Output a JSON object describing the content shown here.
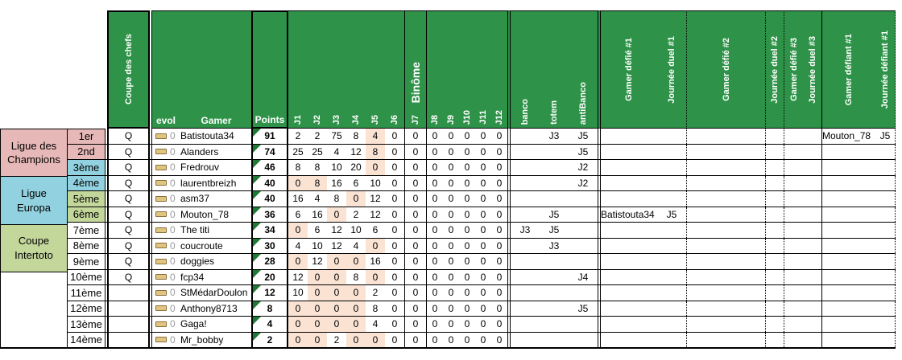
{
  "colors": {
    "header_green": "#2E9348",
    "champions_pink": "#E6B8B7",
    "europa_blue": "#92D1E0",
    "intertoto_green": "#C4D79B",
    "highlight_peach": "#FBE3D4",
    "evol_icon_fill": "#DFC57F",
    "evol_icon_border": "#8A6D3B",
    "points_triangle": "#1E7B33",
    "muted_zero": "#9A9A9A"
  },
  "header": {
    "coupe": "Coupe des chefs",
    "evol": "evol",
    "gamer": "Gamer",
    "points": "Points",
    "binome": "Binôme",
    "j_labels": [
      "J1",
      "J2",
      "J3",
      "J4",
      "J5",
      "J6",
      "J7",
      "J8",
      "J9",
      "J10",
      "J11",
      "J12"
    ],
    "banco": "banco",
    "totem": "totem",
    "antibanco": "antiBanco",
    "defie1": "Gamer défié #1",
    "duel1": "Journée duel #1",
    "defie2": "Gamer défié #2",
    "duel2": "Journée duel #2",
    "defie3": "Gamer défié #3",
    "duel3": "Journée duel #3",
    "defiant1": "Gamer défiant #1",
    "defiantj": "Journée défiant #1"
  },
  "leagues": [
    {
      "line1": "Ligue des",
      "line2": "Champions",
      "rows": 2,
      "color": "#E6B8B7"
    },
    {
      "line1": "Ligue",
      "line2": "Europa",
      "rows": 2,
      "color": "#92D1E0"
    },
    {
      "line1": "Coupe",
      "line2": "Intertoto",
      "rows": 2,
      "color": "#C4D79B"
    },
    {
      "line1": "",
      "line2": "",
      "rows": 8,
      "color": "#FFFFFF"
    }
  ],
  "rows": [
    {
      "rank": "1er",
      "q": "Q",
      "evol": "0",
      "gamer": "Batistouta34",
      "points": "91",
      "j": [
        "2",
        "2",
        "75",
        "8",
        "4",
        "0",
        "0",
        "0",
        "0",
        "0",
        "0",
        "0"
      ],
      "hl": [
        4
      ],
      "banco": "",
      "totem": "J3",
      "antibanco": "J5",
      "defie1": "",
      "duel1": "",
      "defie2": "",
      "duel2": "",
      "defie3": "",
      "duel3": "",
      "defiant1": "Mouton_78",
      "defiantj": "J5",
      "rank_color": "#E6B8B7"
    },
    {
      "rank": "2nd",
      "q": "Q",
      "evol": "0",
      "gamer": "Alanders",
      "points": "74",
      "j": [
        "25",
        "25",
        "4",
        "12",
        "8",
        "0",
        "0",
        "0",
        "0",
        "0",
        "0",
        "0"
      ],
      "hl": [
        4
      ],
      "banco": "",
      "totem": "",
      "antibanco": "J5",
      "defie1": "",
      "duel1": "",
      "defie2": "",
      "duel2": "",
      "defie3": "",
      "duel3": "",
      "defiant1": "",
      "defiantj": "",
      "rank_color": "#E6B8B7"
    },
    {
      "rank": "3ème",
      "q": "Q",
      "evol": "0",
      "gamer": "Fredrouv",
      "points": "46",
      "j": [
        "8",
        "8",
        "10",
        "20",
        "0",
        "0",
        "0",
        "0",
        "0",
        "0",
        "0",
        "0"
      ],
      "hl": [
        4
      ],
      "banco": "",
      "totem": "",
      "antibanco": "J2",
      "defie1": "",
      "duel1": "",
      "defie2": "",
      "duel2": "",
      "defie3": "",
      "duel3": "",
      "defiant1": "",
      "defiantj": "",
      "rank_color": "#92D1E0"
    },
    {
      "rank": "4ème",
      "q": "Q",
      "evol": "0",
      "gamer": "laurentbreizh",
      "points": "40",
      "j": [
        "0",
        "8",
        "16",
        "6",
        "10",
        "0",
        "0",
        "0",
        "0",
        "0",
        "0",
        "0"
      ],
      "hl": [
        0,
        1
      ],
      "banco": "",
      "totem": "",
      "antibanco": "J2",
      "defie1": "",
      "duel1": "",
      "defie2": "",
      "duel2": "",
      "defie3": "",
      "duel3": "",
      "defiant1": "",
      "defiantj": "",
      "rank_color": "#92D1E0"
    },
    {
      "rank": "5ème",
      "q": "Q",
      "evol": "0",
      "gamer": "asm37",
      "points": "40",
      "j": [
        "16",
        "4",
        "8",
        "0",
        "12",
        "0",
        "0",
        "0",
        "0",
        "0",
        "0",
        "0"
      ],
      "hl": [
        3
      ],
      "banco": "",
      "totem": "",
      "antibanco": "",
      "defie1": "",
      "duel1": "",
      "defie2": "",
      "duel2": "",
      "defie3": "",
      "duel3": "",
      "defiant1": "",
      "defiantj": "",
      "rank_color": "#C4D79B"
    },
    {
      "rank": "6ème",
      "q": "Q",
      "evol": "0",
      "gamer": "Mouton_78",
      "points": "36",
      "j": [
        "6",
        "16",
        "0",
        "2",
        "12",
        "0",
        "0",
        "0",
        "0",
        "0",
        "0",
        "0"
      ],
      "hl": [
        2
      ],
      "banco": "",
      "totem": "J5",
      "antibanco": "",
      "defie1": "Batistouta34",
      "duel1": "J5",
      "defie2": "",
      "duel2": "",
      "defie3": "",
      "duel3": "",
      "defiant1": "",
      "defiantj": "",
      "rank_color": "#C4D79B"
    },
    {
      "rank": "7ème",
      "q": "Q",
      "evol": "0",
      "gamer": "The titi",
      "points": "34",
      "j": [
        "0",
        "6",
        "12",
        "10",
        "6",
        "0",
        "0",
        "0",
        "0",
        "0",
        "0",
        "0"
      ],
      "hl": [
        0
      ],
      "banco": "J3",
      "totem": "J5",
      "antibanco": "",
      "defie1": "",
      "duel1": "",
      "defie2": "",
      "duel2": "",
      "defie3": "",
      "duel3": "",
      "defiant1": "",
      "defiantj": "",
      "rank_color": "#FFFFFF"
    },
    {
      "rank": "8ème",
      "q": "Q",
      "evol": "0",
      "gamer": "coucroute",
      "points": "30",
      "j": [
        "4",
        "10",
        "12",
        "4",
        "0",
        "0",
        "0",
        "0",
        "0",
        "0",
        "0",
        "0"
      ],
      "hl": [
        4
      ],
      "banco": "",
      "totem": "J3",
      "antibanco": "",
      "defie1": "",
      "duel1": "",
      "defie2": "",
      "duel2": "",
      "defie3": "",
      "duel3": "",
      "defiant1": "",
      "defiantj": "",
      "rank_color": "#FFFFFF"
    },
    {
      "rank": "9ème",
      "q": "Q",
      "evol": "0",
      "gamer": "doggies",
      "points": "28",
      "j": [
        "0",
        "12",
        "0",
        "0",
        "16",
        "0",
        "0",
        "0",
        "0",
        "0",
        "0",
        "0"
      ],
      "hl": [
        0,
        2,
        3
      ],
      "banco": "",
      "totem": "",
      "antibanco": "",
      "defie1": "",
      "duel1": "",
      "defie2": "",
      "duel2": "",
      "defie3": "",
      "duel3": "",
      "defiant1": "",
      "defiantj": "",
      "rank_color": "#FFFFFF"
    },
    {
      "rank": "10ème",
      "q": "Q",
      "evol": "0",
      "gamer": "fcp34",
      "points": "20",
      "j": [
        "12",
        "0",
        "0",
        "8",
        "0",
        "0",
        "0",
        "0",
        "0",
        "0",
        "0",
        "0"
      ],
      "hl": [
        1,
        2,
        4
      ],
      "banco": "",
      "totem": "",
      "antibanco": "J4",
      "defie1": "",
      "duel1": "",
      "defie2": "",
      "duel2": "",
      "defie3": "",
      "duel3": "",
      "defiant1": "",
      "defiantj": "",
      "rank_color": "#FFFFFF"
    },
    {
      "rank": "11ème",
      "q": "",
      "evol": "0",
      "gamer": "StMédarDoulon",
      "points": "12",
      "j": [
        "10",
        "0",
        "0",
        "0",
        "2",
        "0",
        "0",
        "0",
        "0",
        "0",
        "0",
        "0"
      ],
      "hl": [
        1,
        2,
        3
      ],
      "banco": "",
      "totem": "",
      "antibanco": "",
      "defie1": "",
      "duel1": "",
      "defie2": "",
      "duel2": "",
      "defie3": "",
      "duel3": "",
      "defiant1": "",
      "defiantj": "",
      "rank_color": "#FFFFFF"
    },
    {
      "rank": "12ème",
      "q": "",
      "evol": "0",
      "gamer": "Anthony8713",
      "points": "8",
      "j": [
        "0",
        "0",
        "0",
        "0",
        "8",
        "0",
        "0",
        "0",
        "0",
        "0",
        "0",
        "0"
      ],
      "hl": [
        0,
        1,
        2,
        3
      ],
      "banco": "",
      "totem": "",
      "antibanco": "J5",
      "defie1": "",
      "duel1": "",
      "defie2": "",
      "duel2": "",
      "defie3": "",
      "duel3": "",
      "defiant1": "",
      "defiantj": "",
      "rank_color": "#FFFFFF"
    },
    {
      "rank": "13ème",
      "q": "",
      "evol": "0",
      "gamer": "Gaga!",
      "points": "4",
      "j": [
        "0",
        "0",
        "0",
        "0",
        "4",
        "0",
        "0",
        "0",
        "0",
        "0",
        "0",
        "0"
      ],
      "hl": [
        0,
        1,
        2,
        3
      ],
      "banco": "",
      "totem": "",
      "antibanco": "",
      "defie1": "",
      "duel1": "",
      "defie2": "",
      "duel2": "",
      "defie3": "",
      "duel3": "",
      "defiant1": "",
      "defiantj": "",
      "rank_color": "#FFFFFF"
    },
    {
      "rank": "14ème",
      "q": "",
      "evol": "0",
      "gamer": "Mr_bobby",
      "points": "2",
      "j": [
        "0",
        "0",
        "2",
        "0",
        "0",
        "0",
        "0",
        "0",
        "0",
        "0",
        "0",
        "0"
      ],
      "hl": [
        0,
        1,
        3,
        4
      ],
      "banco": "",
      "totem": "",
      "antibanco": "",
      "defie1": "",
      "duel1": "",
      "defie2": "",
      "defie3": "",
      "duel2": "",
      "duel3": "",
      "defiant1": "",
      "defiantj": "",
      "rank_color": "#FFFFFF"
    }
  ]
}
